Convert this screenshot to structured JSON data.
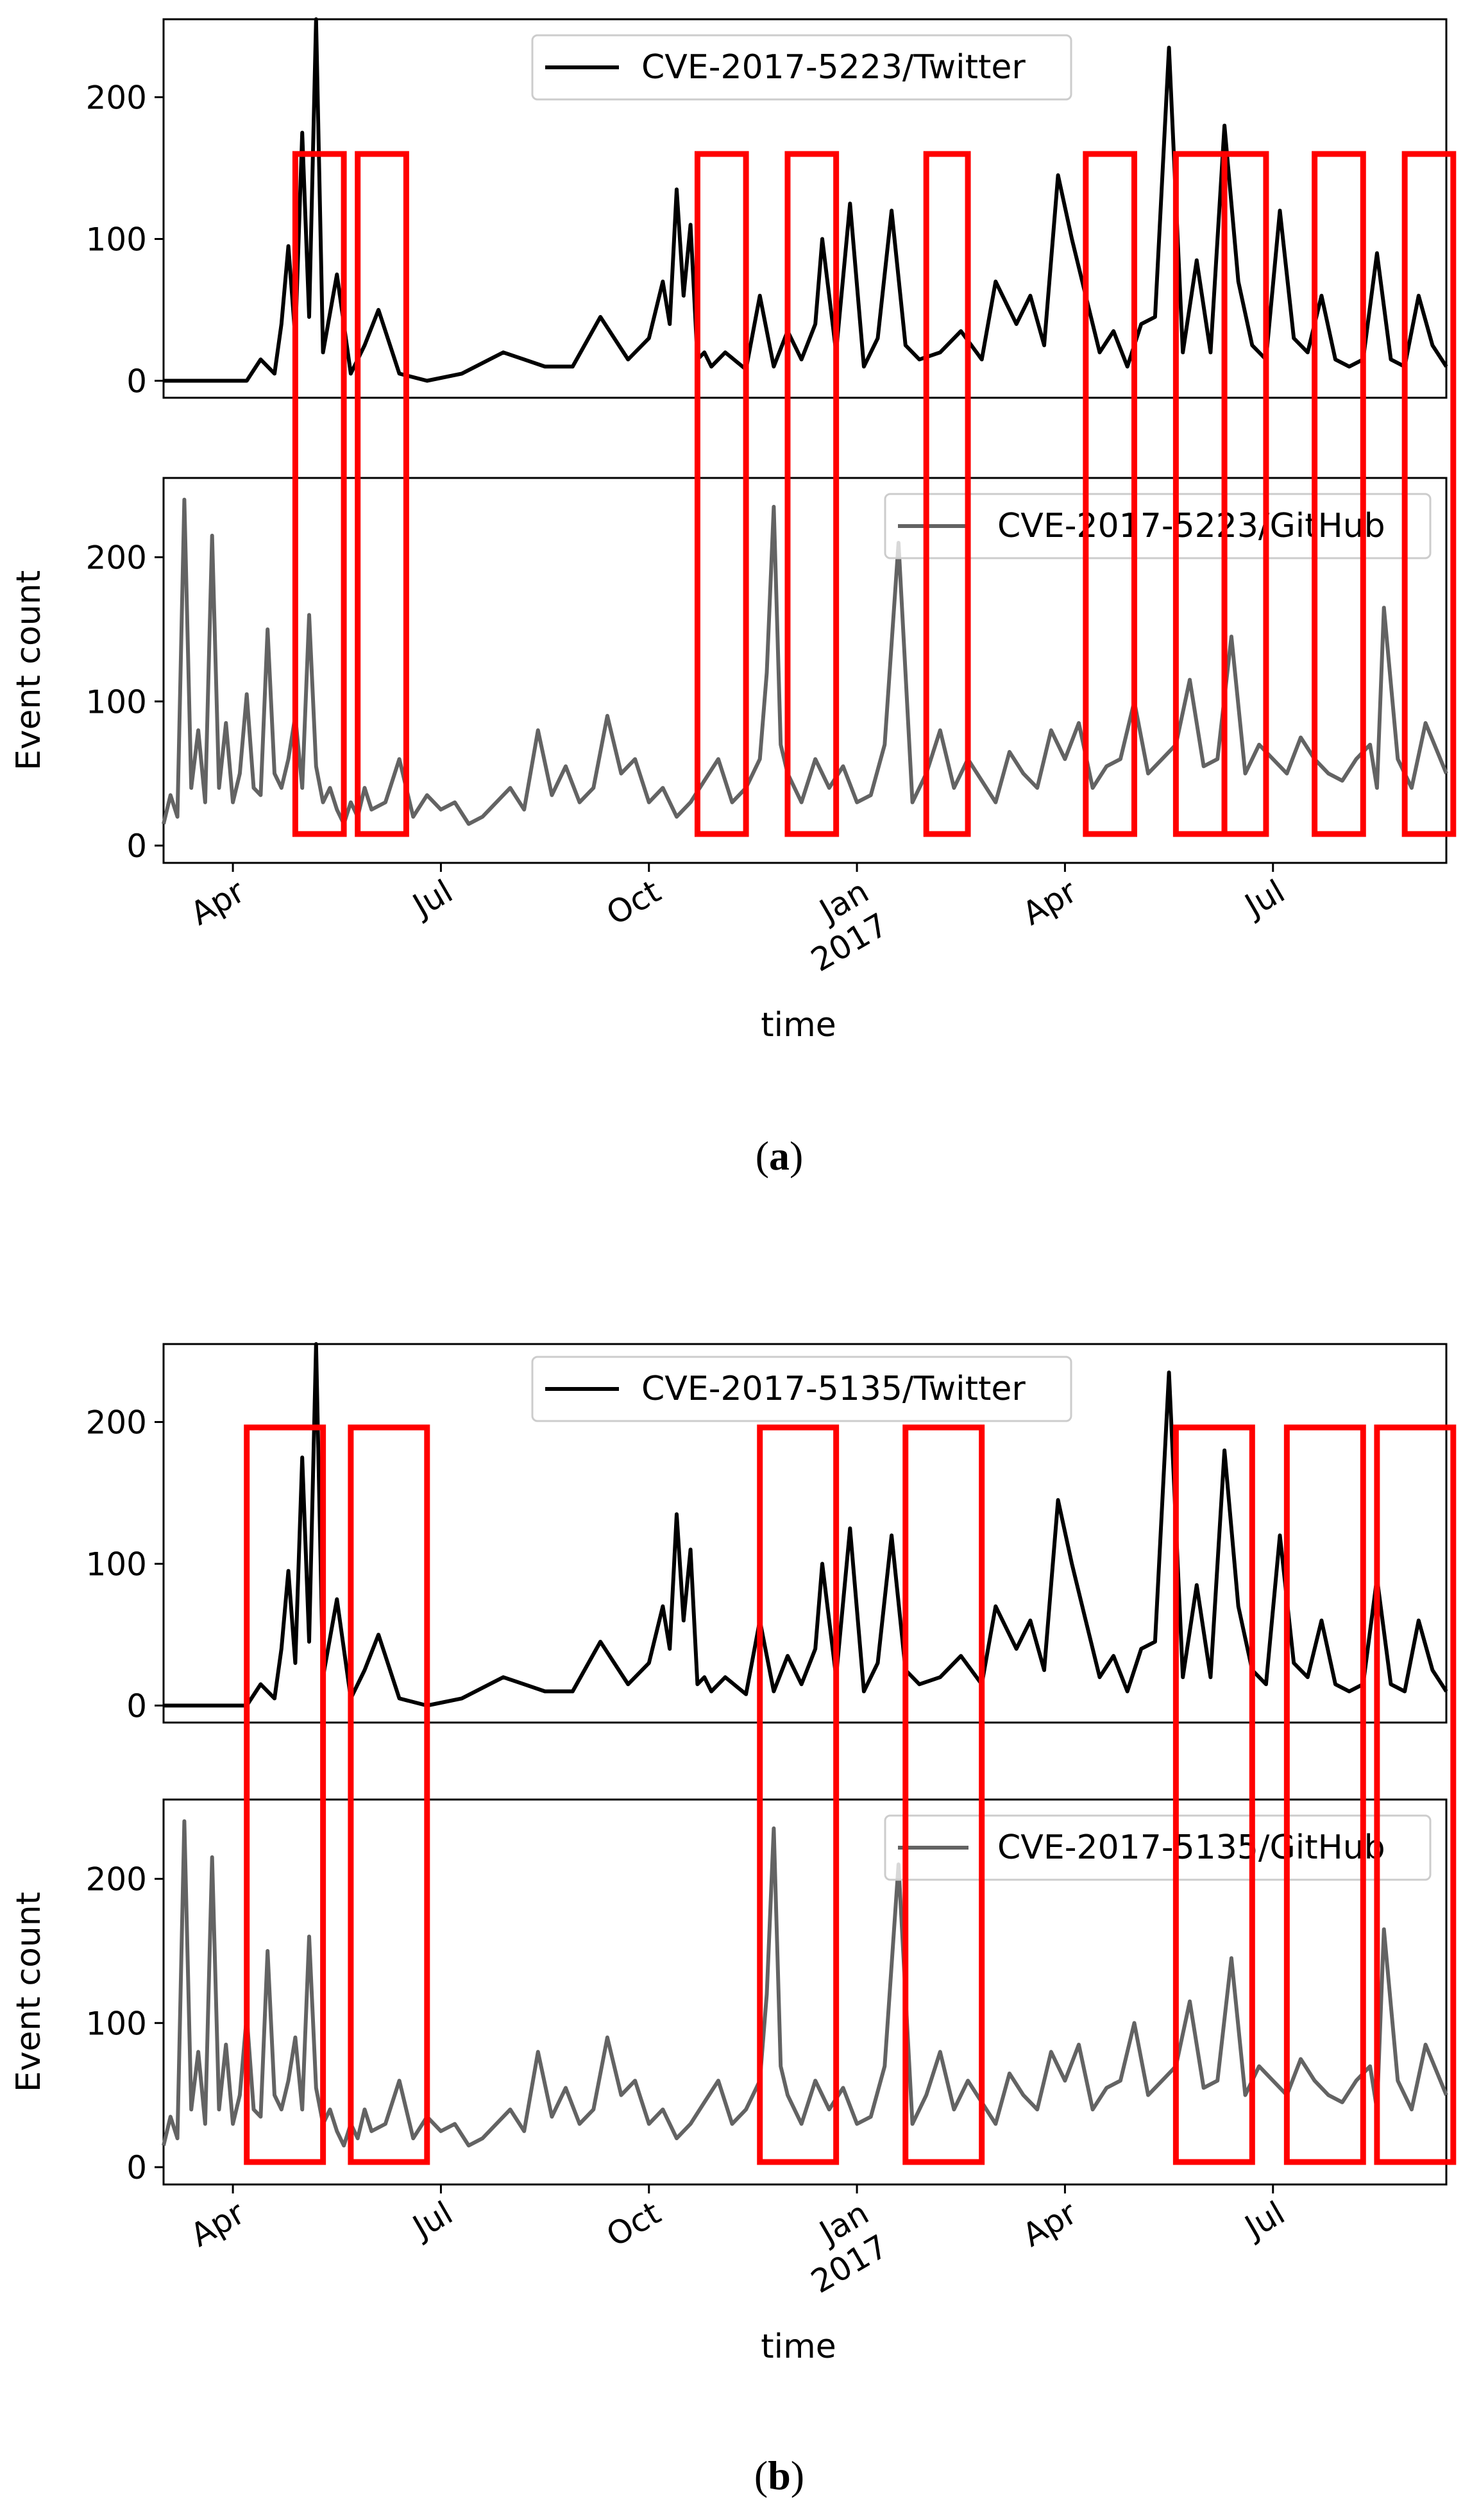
{
  "figure": {
    "caption_a": "a",
    "caption_b": "b"
  },
  "chart_data": [
    {
      "panel": "a",
      "type": "line",
      "xlabel": "time",
      "ylabel": "Event count",
      "x_ticks": [
        "Apr",
        "Jul",
        "Oct",
        "Jan\n2017",
        "Apr",
        "Jul"
      ],
      "x_tick_months": [
        3,
        6,
        9,
        12,
        15,
        18
      ],
      "xlim_months": [
        2.0,
        20.5
      ],
      "subplots": [
        {
          "name": "twitter",
          "legend": "CVE-2017-5223/Twitter",
          "color": "#000000",
          "ylim": [
            -12,
            255
          ],
          "y_ticks": [
            0,
            100,
            200
          ],
          "x_months": [
            2.0,
            2.3,
            2.6,
            2.9,
            3.2,
            3.4,
            3.6,
            3.7,
            3.8,
            3.9,
            4.0,
            4.1,
            4.2,
            4.3,
            4.5,
            4.7,
            4.9,
            5.1,
            5.4,
            5.8,
            6.3,
            6.9,
            7.2,
            7.5,
            7.9,
            8.3,
            8.7,
            9.0,
            9.2,
            9.3,
            9.4,
            9.5,
            9.6,
            9.7,
            9.8,
            9.9,
            10.1,
            10.4,
            10.6,
            10.8,
            11.0,
            11.2,
            11.4,
            11.5,
            11.7,
            11.9,
            12.1,
            12.3,
            12.5,
            12.7,
            12.9,
            13.2,
            13.5,
            13.8,
            14.0,
            14.3,
            14.5,
            14.7,
            14.9,
            15.1,
            15.3,
            15.5,
            15.7,
            15.9,
            16.1,
            16.3,
            16.5,
            16.7,
            16.9,
            17.1,
            17.3,
            17.5,
            17.7,
            17.9,
            18.1,
            18.3,
            18.5,
            18.7,
            18.9,
            19.1,
            19.3,
            19.5,
            19.7,
            19.9,
            20.1,
            20.3,
            20.5
          ],
          "values": [
            0,
            0,
            0,
            0,
            0,
            15,
            5,
            40,
            95,
            30,
            175,
            45,
            255,
            20,
            75,
            5,
            25,
            50,
            5,
            0,
            5,
            20,
            15,
            10,
            10,
            45,
            15,
            30,
            70,
            40,
            135,
            60,
            110,
            15,
            20,
            10,
            20,
            8,
            60,
            10,
            35,
            15,
            40,
            100,
            20,
            125,
            10,
            30,
            120,
            25,
            15,
            20,
            35,
            15,
            70,
            40,
            60,
            25,
            145,
            100,
            60,
            20,
            35,
            10,
            40,
            45,
            235,
            20,
            85,
            20,
            180,
            70,
            25,
            15,
            120,
            30,
            20,
            60,
            15,
            10,
            15,
            90,
            15,
            10,
            60,
            25,
            10
          ]
        },
        {
          "name": "github",
          "legend": "CVE-2017-5223/GitHub",
          "color": "#636363",
          "ylim": [
            -12,
            255
          ],
          "y_ticks": [
            0,
            100,
            200
          ],
          "x_months": [
            2.0,
            2.1,
            2.2,
            2.3,
            2.4,
            2.5,
            2.6,
            2.7,
            2.8,
            2.9,
            3.0,
            3.1,
            3.2,
            3.3,
            3.4,
            3.5,
            3.6,
            3.7,
            3.8,
            3.9,
            4.0,
            4.1,
            4.2,
            4.3,
            4.4,
            4.5,
            4.6,
            4.7,
            4.8,
            4.9,
            5.0,
            5.2,
            5.4,
            5.6,
            5.8,
            6.0,
            6.2,
            6.4,
            6.6,
            6.8,
            7.0,
            7.2,
            7.4,
            7.6,
            7.8,
            8.0,
            8.2,
            8.4,
            8.6,
            8.8,
            9.0,
            9.2,
            9.4,
            9.6,
            9.8,
            10.0,
            10.2,
            10.4,
            10.6,
            10.7,
            10.8,
            10.9,
            11.0,
            11.2,
            11.4,
            11.6,
            11.8,
            12.0,
            12.2,
            12.4,
            12.6,
            12.8,
            13.0,
            13.2,
            13.4,
            13.6,
            13.8,
            14.0,
            14.2,
            14.4,
            14.6,
            14.8,
            15.0,
            15.2,
            15.4,
            15.6,
            15.8,
            16.0,
            16.2,
            16.4,
            16.6,
            16.8,
            17.0,
            17.2,
            17.4,
            17.6,
            17.8,
            18.0,
            18.2,
            18.4,
            18.6,
            18.8,
            19.0,
            19.2,
            19.4,
            19.5,
            19.6,
            19.8,
            20.0,
            20.2,
            20.5
          ],
          "values": [
            15,
            35,
            20,
            240,
            40,
            80,
            30,
            215,
            40,
            85,
            30,
            50,
            105,
            40,
            35,
            150,
            50,
            40,
            60,
            90,
            40,
            160,
            55,
            30,
            40,
            25,
            15,
            30,
            20,
            40,
            25,
            30,
            60,
            20,
            35,
            25,
            30,
            15,
            20,
            30,
            40,
            25,
            80,
            35,
            55,
            30,
            40,
            90,
            50,
            60,
            30,
            40,
            20,
            30,
            45,
            60,
            30,
            40,
            60,
            120,
            235,
            70,
            50,
            30,
            60,
            40,
            55,
            30,
            35,
            70,
            210,
            30,
            50,
            80,
            40,
            60,
            45,
            30,
            65,
            50,
            40,
            80,
            60,
            85,
            40,
            55,
            60,
            100,
            50,
            60,
            70,
            115,
            55,
            60,
            145,
            50,
            70,
            60,
            50,
            75,
            60,
            50,
            45,
            60,
            70,
            40,
            165,
            60,
            40,
            85,
            50
          ]
        }
      ],
      "highlight_month_ranges": [
        [
          3.9,
          4.6
        ],
        [
          4.8,
          5.5
        ],
        [
          9.7,
          10.4
        ],
        [
          11.0,
          11.7
        ],
        [
          13.0,
          13.6
        ],
        [
          15.3,
          16.0
        ],
        [
          16.6,
          17.3
        ],
        [
          17.3,
          17.9
        ],
        [
          18.6,
          19.3
        ],
        [
          19.9,
          20.6
        ]
      ]
    },
    {
      "panel": "b",
      "type": "line",
      "xlabel": "time",
      "ylabel": "Event count",
      "x_ticks": [
        "Apr",
        "Jul",
        "Oct",
        "Jan\n2017",
        "Apr",
        "Jul"
      ],
      "x_tick_months": [
        3,
        6,
        9,
        12,
        15,
        18
      ],
      "xlim_months": [
        2.0,
        20.5
      ],
      "subplots": [
        {
          "name": "twitter",
          "legend": "CVE-2017-5135/Twitter",
          "color": "#000000",
          "ylim": [
            -12,
            255
          ],
          "y_ticks": [
            0,
            100,
            200
          ],
          "x_months": [
            2.0,
            2.3,
            2.6,
            2.9,
            3.2,
            3.4,
            3.6,
            3.7,
            3.8,
            3.9,
            4.0,
            4.1,
            4.2,
            4.3,
            4.5,
            4.7,
            4.9,
            5.1,
            5.4,
            5.8,
            6.3,
            6.9,
            7.2,
            7.5,
            7.9,
            8.3,
            8.7,
            9.0,
            9.2,
            9.3,
            9.4,
            9.5,
            9.6,
            9.7,
            9.8,
            9.9,
            10.1,
            10.4,
            10.6,
            10.8,
            11.0,
            11.2,
            11.4,
            11.5,
            11.7,
            11.9,
            12.1,
            12.3,
            12.5,
            12.7,
            12.9,
            13.2,
            13.5,
            13.8,
            14.0,
            14.3,
            14.5,
            14.7,
            14.9,
            15.1,
            15.3,
            15.5,
            15.7,
            15.9,
            16.1,
            16.3,
            16.5,
            16.7,
            16.9,
            17.1,
            17.3,
            17.5,
            17.7,
            17.9,
            18.1,
            18.3,
            18.5,
            18.7,
            18.9,
            19.1,
            19.3,
            19.5,
            19.7,
            19.9,
            20.1,
            20.3,
            20.5
          ],
          "values": [
            0,
            0,
            0,
            0,
            0,
            15,
            5,
            40,
            95,
            30,
            175,
            45,
            255,
            20,
            75,
            5,
            25,
            50,
            5,
            0,
            5,
            20,
            15,
            10,
            10,
            45,
            15,
            30,
            70,
            40,
            135,
            60,
            110,
            15,
            20,
            10,
            20,
            8,
            60,
            10,
            35,
            15,
            40,
            100,
            20,
            125,
            10,
            30,
            120,
            25,
            15,
            20,
            35,
            15,
            70,
            40,
            60,
            25,
            145,
            100,
            60,
            20,
            35,
            10,
            40,
            45,
            235,
            20,
            85,
            20,
            180,
            70,
            25,
            15,
            120,
            30,
            20,
            60,
            15,
            10,
            15,
            90,
            15,
            10,
            60,
            25,
            10
          ]
        },
        {
          "name": "github",
          "legend": "CVE-2017-5135/GitHub",
          "color": "#636363",
          "ylim": [
            -12,
            255
          ],
          "y_ticks": [
            0,
            100,
            200
          ],
          "x_months": [
            2.0,
            2.1,
            2.2,
            2.3,
            2.4,
            2.5,
            2.6,
            2.7,
            2.8,
            2.9,
            3.0,
            3.1,
            3.2,
            3.3,
            3.4,
            3.5,
            3.6,
            3.7,
            3.8,
            3.9,
            4.0,
            4.1,
            4.2,
            4.3,
            4.4,
            4.5,
            4.6,
            4.7,
            4.8,
            4.9,
            5.0,
            5.2,
            5.4,
            5.6,
            5.8,
            6.0,
            6.2,
            6.4,
            6.6,
            6.8,
            7.0,
            7.2,
            7.4,
            7.6,
            7.8,
            8.0,
            8.2,
            8.4,
            8.6,
            8.8,
            9.0,
            9.2,
            9.4,
            9.6,
            9.8,
            10.0,
            10.2,
            10.4,
            10.6,
            10.7,
            10.8,
            10.9,
            11.0,
            11.2,
            11.4,
            11.6,
            11.8,
            12.0,
            12.2,
            12.4,
            12.6,
            12.8,
            13.0,
            13.2,
            13.4,
            13.6,
            13.8,
            14.0,
            14.2,
            14.4,
            14.6,
            14.8,
            15.0,
            15.2,
            15.4,
            15.6,
            15.8,
            16.0,
            16.2,
            16.4,
            16.6,
            16.8,
            17.0,
            17.2,
            17.4,
            17.6,
            17.8,
            18.0,
            18.2,
            18.4,
            18.6,
            18.8,
            19.0,
            19.2,
            19.4,
            19.5,
            19.6,
            19.8,
            20.0,
            20.2,
            20.5
          ],
          "values": [
            15,
            35,
            20,
            240,
            40,
            80,
            30,
            215,
            40,
            85,
            30,
            50,
            105,
            40,
            35,
            150,
            50,
            40,
            60,
            90,
            40,
            160,
            55,
            30,
            40,
            25,
            15,
            30,
            20,
            40,
            25,
            30,
            60,
            20,
            35,
            25,
            30,
            15,
            20,
            30,
            40,
            25,
            80,
            35,
            55,
            30,
            40,
            90,
            50,
            60,
            30,
            40,
            20,
            30,
            45,
            60,
            30,
            40,
            60,
            120,
            235,
            70,
            50,
            30,
            60,
            40,
            55,
            30,
            35,
            70,
            210,
            30,
            50,
            80,
            40,
            60,
            45,
            30,
            65,
            50,
            40,
            80,
            60,
            85,
            40,
            55,
            60,
            100,
            50,
            60,
            70,
            115,
            55,
            60,
            145,
            50,
            70,
            60,
            50,
            75,
            60,
            50,
            45,
            60,
            70,
            40,
            165,
            60,
            40,
            85,
            50
          ]
        }
      ],
      "highlight_month_ranges": [
        [
          3.2,
          4.3
        ],
        [
          4.7,
          5.8
        ],
        [
          10.6,
          11.7
        ],
        [
          12.7,
          13.8
        ],
        [
          16.6,
          17.7
        ],
        [
          18.2,
          19.3
        ],
        [
          19.5,
          20.6
        ]
      ]
    }
  ]
}
